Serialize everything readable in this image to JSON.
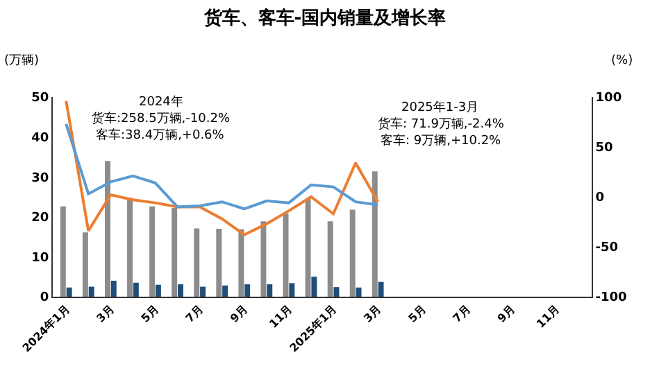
{
  "chart_data": {
    "type": "bar",
    "title": "货车、客车-国内销量及增长率",
    "ylabel": "(万辆)",
    "y2label": "(%)",
    "categories": [
      "2024年1月",
      null,
      "3月",
      null,
      "5月",
      null,
      "7月",
      null,
      "9月",
      null,
      "11月",
      null,
      "2025年1月",
      null,
      "3月",
      null,
      "5月",
      null,
      "7月",
      null,
      "9月",
      null,
      "11月",
      null
    ],
    "series": [
      {
        "color": "#8c8c8c",
        "values": [
          22.6,
          16.1,
          34,
          24.8,
          22.6,
          22.2,
          17.1,
          17,
          16.9,
          18.9,
          20.8,
          24.5,
          18.9,
          21.8,
          31.4,
          null,
          null,
          null,
          null,
          null,
          null,
          null,
          null,
          null
        ]
      },
      {
        "color": "#1f4e79",
        "values": [
          2.3,
          2.5,
          4,
          3.5,
          3,
          3.1,
          2.5,
          2.8,
          3.1,
          3.1,
          3.4,
          5,
          2.4,
          2.3,
          3.7,
          null,
          null,
          null,
          null,
          null,
          null,
          null,
          null,
          null
        ]
      },
      {
        "type": "line",
        "axis": "y2",
        "color": "#ed7d31",
        "values": [
          96,
          -34,
          2,
          -3,
          -6,
          -10,
          -10,
          -22,
          -38,
          -27,
          -14,
          0,
          -17,
          34,
          -5,
          null,
          null,
          null,
          null,
          null,
          null,
          null,
          null,
          null
        ]
      },
      {
        "type": "line",
        "axis": "y2",
        "color": "#5b9bd5",
        "values": [
          73,
          3,
          15,
          21,
          14,
          -10,
          -9,
          -5,
          -12,
          -4,
          -6,
          12,
          10,
          -5,
          -8,
          null,
          null,
          null,
          null,
          null,
          null,
          null,
          null,
          null
        ]
      }
    ],
    "ylim": [
      0,
      50
    ],
    "yticks": [
      0,
      10,
      20,
      30,
      40,
      50
    ],
    "y2lim": [
      -100,
      100
    ],
    "y2ticks": [
      -100,
      -50,
      0,
      50,
      100
    ],
    "grid": false,
    "legend": false,
    "marker": "none",
    "line_style": "solid",
    "annotations": [
      "2024年",
      "货车:258.5万辆,-10.2%",
      "客车:38.4万辆,+0.6%",
      "2025年1-3月",
      "货车: 71.9万辆,-2.4%",
      "客车: 9万辆,+10.2%"
    ]
  }
}
